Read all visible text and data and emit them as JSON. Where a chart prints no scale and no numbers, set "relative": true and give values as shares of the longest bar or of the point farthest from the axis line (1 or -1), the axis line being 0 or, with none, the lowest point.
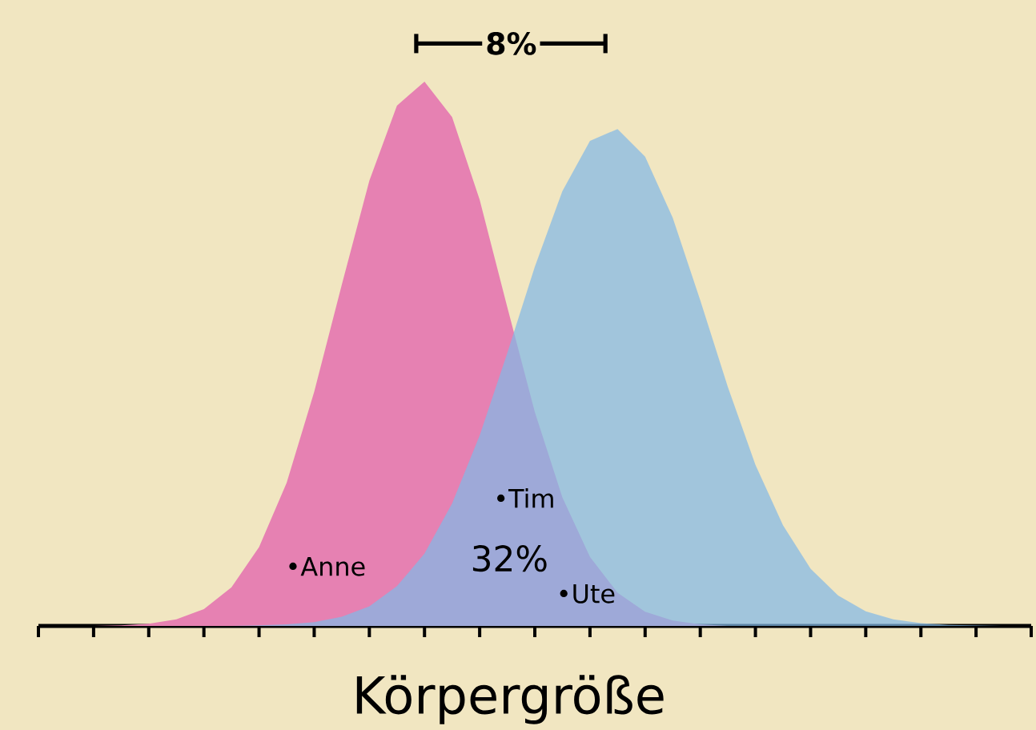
{
  "chart_data": {
    "type": "area",
    "relative": true,
    "xlabel": "Körpergröße",
    "categories": [
      null,
      null,
      null,
      null,
      null,
      null,
      null,
      null,
      null,
      null,
      null,
      null,
      null,
      null,
      null,
      null,
      null,
      null,
      null,
      null,
      null,
      null,
      null,
      null,
      null,
      null,
      null,
      null,
      null,
      null,
      null,
      null,
      null,
      null,
      null,
      null,
      null
    ],
    "series": [
      {
        "color": "#e681b2",
        "values": [
          0,
          0,
          0,
          0.001,
          0.004,
          0.012,
          0.031,
          0.071,
          0.145,
          0.263,
          0.43,
          0.627,
          0.818,
          0.956,
          1,
          0.935,
          0.783,
          0.586,
          0.393,
          0.236,
          0.127,
          0.061,
          0.026,
          0.01,
          0.003,
          0,
          0,
          0,
          0,
          0,
          0,
          0,
          0,
          0,
          0,
          0,
          0
        ]
      },
      {
        "color": "#82b8e6",
        "values": [
          0,
          0,
          0,
          0,
          0,
          0,
          0,
          0,
          0.001,
          0.003,
          0.007,
          0.017,
          0.036,
          0.073,
          0.133,
          0.225,
          0.35,
          0.501,
          0.66,
          0.799,
          0.891,
          0.913,
          0.862,
          0.75,
          0.598,
          0.439,
          0.296,
          0.185,
          0.105,
          0.056,
          0.027,
          0.012,
          0.005,
          0.002,
          0.001,
          0,
          0
        ]
      }
    ],
    "annotations": [
      "8%",
      "32%",
      "•Tim",
      "•Anne",
      "•Ute"
    ]
  }
}
